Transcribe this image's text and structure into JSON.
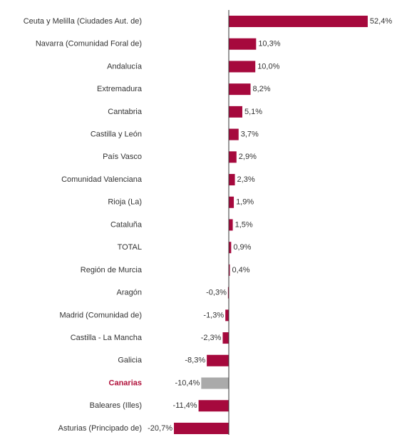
{
  "chart_data": {
    "type": "barh",
    "categories": [
      "Ceuta y Melilla (Ciudades Aut. de)",
      "Navarra (Comunidad Foral de)",
      "Andalucía",
      "Extremadura",
      "Cantabria",
      "Castilla y León",
      "País Vasco",
      "Comunidad Valenciana",
      "Rioja (La)",
      "Cataluña",
      "TOTAL",
      "Región de Murcia",
      "Aragón",
      "Madrid (Comunidad de)",
      "Castilla - La Mancha",
      "Galicia",
      "Canarias",
      "Baleares (Illes)",
      "Asturias (Principado de)"
    ],
    "values": [
      52.4,
      10.3,
      10.0,
      8.2,
      5.1,
      3.7,
      2.9,
      2.3,
      1.9,
      1.5,
      0.9,
      0.4,
      -0.3,
      -1.3,
      -2.3,
      -8.3,
      -10.4,
      -11.4,
      -20.7
    ],
    "value_labels": [
      "52,4%",
      "10,3%",
      "10,0%",
      "8,2%",
      "5,1%",
      "3,7%",
      "2,9%",
      "2,3%",
      "1,9%",
      "1,5%",
      "0,9%",
      "0,4%",
      "-0,3%",
      "-1,3%",
      "-2,3%",
      "-8,3%",
      "-10,4%",
      "-11,4%",
      "-20,7%"
    ],
    "colors": [
      "#a6093d",
      "#a6093d",
      "#a6093d",
      "#a6093d",
      "#a6093d",
      "#a6093d",
      "#a6093d",
      "#a6093d",
      "#a6093d",
      "#a6093d",
      "#a6093d",
      "#a6093d",
      "#a6093d",
      "#a6093d",
      "#a6093d",
      "#a6093d",
      "#aaaaaa",
      "#a6093d",
      "#a6093d"
    ],
    "category_label_colors": [
      "#333333",
      "#333333",
      "#333333",
      "#333333",
      "#333333",
      "#333333",
      "#333333",
      "#333333",
      "#333333",
      "#333333",
      "#333333",
      "#333333",
      "#333333",
      "#333333",
      "#333333",
      "#333333",
      "#b0103a",
      "#333333",
      "#333333"
    ]
  }
}
